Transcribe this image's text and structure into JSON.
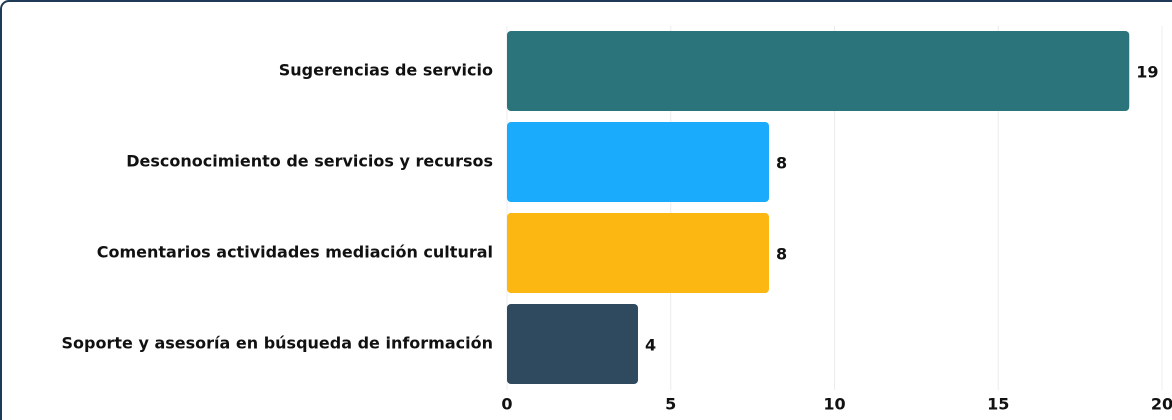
{
  "chart_data": {
    "type": "bar",
    "orientation": "horizontal",
    "categories": [
      "Sugerencias de servicio",
      "Desconocimiento de servicios y recursos",
      "Comentarios actividades mediación cultural",
      "Soporte y asesoría en búsqueda de información"
    ],
    "values": [
      19,
      8,
      8,
      4
    ],
    "colors": [
      "#2b747b",
      "#1aabfd",
      "#fdb713",
      "#2f495e"
    ],
    "xlim": [
      0,
      20
    ],
    "xticks": [
      0,
      5,
      10,
      15,
      20
    ],
    "grid": true
  }
}
